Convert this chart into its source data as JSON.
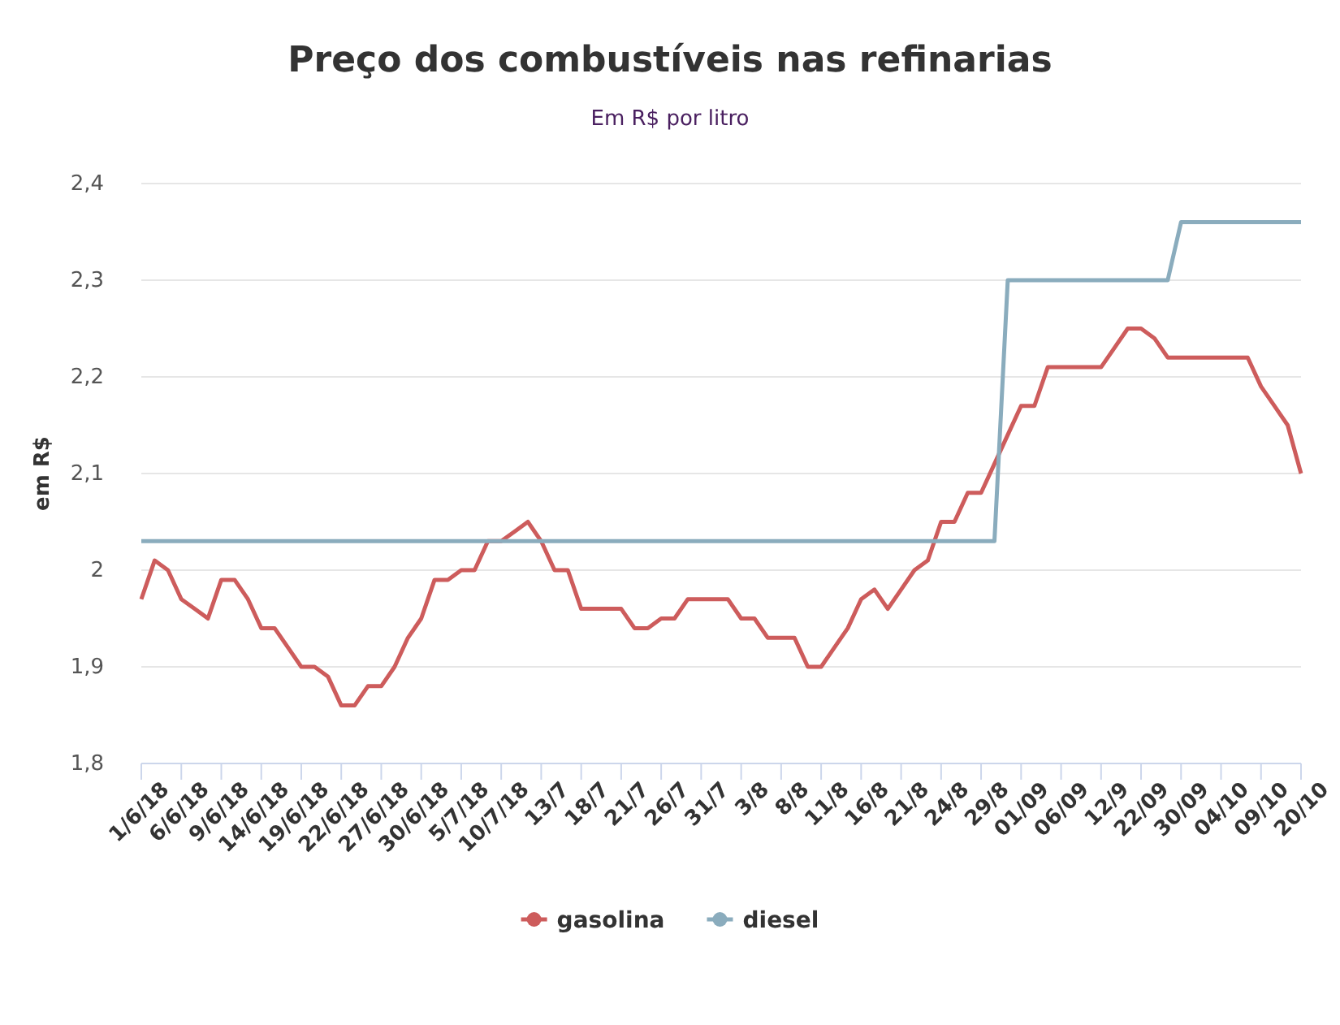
{
  "chart_data": {
    "type": "line",
    "title": "Preço dos combustíveis nas refinarias",
    "subtitle": "Em R$ por litro",
    "ylabel": "em R$",
    "categories": [
      "1/6/18",
      null,
      null,
      "6/6/18",
      null,
      null,
      "9/6/18",
      null,
      null,
      "14/6/18",
      null,
      null,
      "19/6/18",
      null,
      null,
      "22/6/18",
      null,
      null,
      "27/6/18",
      null,
      null,
      "30/6/18",
      null,
      null,
      "5/7/18",
      null,
      null,
      "10/7/18",
      null,
      null,
      "13/7",
      null,
      null,
      "18/7",
      null,
      null,
      "21/7",
      null,
      null,
      "26/7",
      null,
      null,
      "31/7",
      null,
      null,
      "3/8",
      null,
      null,
      "8/8",
      null,
      null,
      "11/8",
      null,
      null,
      "16/8",
      null,
      null,
      "21/8",
      null,
      null,
      "24/8",
      null,
      null,
      "29/8",
      null,
      null,
      "01/09",
      null,
      null,
      "06/09",
      null,
      null,
      "12/9",
      null,
      null,
      "22/09",
      null,
      null,
      "30/09",
      null,
      null,
      "04/10",
      null,
      null,
      "09/10",
      null,
      null,
      "20/10"
    ],
    "series": [
      {
        "name": "gasolina",
        "color": "#cd5c5c",
        "values": [
          1.97,
          2.01,
          2.0,
          1.97,
          1.96,
          1.95,
          1.99,
          1.99,
          1.97,
          1.94,
          1.94,
          1.92,
          1.9,
          1.9,
          1.89,
          1.86,
          1.86,
          1.88,
          1.88,
          1.9,
          1.93,
          1.95,
          1.99,
          1.99,
          2.0,
          2.0,
          2.03,
          2.03,
          2.04,
          2.05,
          2.03,
          2.0,
          2.0,
          1.96,
          1.96,
          1.96,
          1.96,
          1.94,
          1.94,
          1.95,
          1.95,
          1.97,
          1.97,
          1.97,
          1.97,
          1.95,
          1.95,
          1.93,
          1.93,
          1.93,
          1.9,
          1.9,
          1.92,
          1.94,
          1.97,
          1.98,
          1.96,
          1.98,
          2.0,
          2.01,
          2.05,
          2.05,
          2.08,
          2.08,
          2.11,
          2.14,
          2.17,
          2.17,
          2.21,
          2.21,
          2.21,
          2.21,
          2.21,
          2.23,
          2.25,
          2.25,
          2.24,
          2.22,
          2.22,
          2.22,
          2.22,
          2.22,
          2.22,
          2.22,
          2.19,
          2.17,
          2.15,
          2.1
        ]
      },
      {
        "name": "diesel",
        "color": "#8aacbd",
        "values": [
          2.03,
          2.03,
          2.03,
          2.03,
          2.03,
          2.03,
          2.03,
          2.03,
          2.03,
          2.03,
          2.03,
          2.03,
          2.03,
          2.03,
          2.03,
          2.03,
          2.03,
          2.03,
          2.03,
          2.03,
          2.03,
          2.03,
          2.03,
          2.03,
          2.03,
          2.03,
          2.03,
          2.03,
          2.03,
          2.03,
          2.03,
          2.03,
          2.03,
          2.03,
          2.03,
          2.03,
          2.03,
          2.03,
          2.03,
          2.03,
          2.03,
          2.03,
          2.03,
          2.03,
          2.03,
          2.03,
          2.03,
          2.03,
          2.03,
          2.03,
          2.03,
          2.03,
          2.03,
          2.03,
          2.03,
          2.03,
          2.03,
          2.03,
          2.03,
          2.03,
          2.03,
          2.03,
          2.03,
          2.03,
          2.03,
          2.3,
          2.3,
          2.3,
          2.3,
          2.3,
          2.3,
          2.3,
          2.3,
          2.3,
          2.3,
          2.3,
          2.3,
          2.3,
          2.36,
          2.36,
          2.36,
          2.36,
          2.36,
          2.36,
          2.36,
          2.36,
          2.36,
          2.36
        ]
      }
    ],
    "ylim": [
      1.8,
      2.4
    ],
    "yticks": [
      {
        "value": 1.8,
        "label": "1,8"
      },
      {
        "value": 1.9,
        "label": "1,9"
      },
      2,
      {
        "value": 2.1,
        "label": "2,1"
      },
      {
        "value": 2.2,
        "label": "2,2"
      },
      {
        "value": 2.3,
        "label": "2,3"
      },
      {
        "value": 2.4,
        "label": "2,4"
      }
    ],
    "grid": "y",
    "legend": "bottom"
  }
}
